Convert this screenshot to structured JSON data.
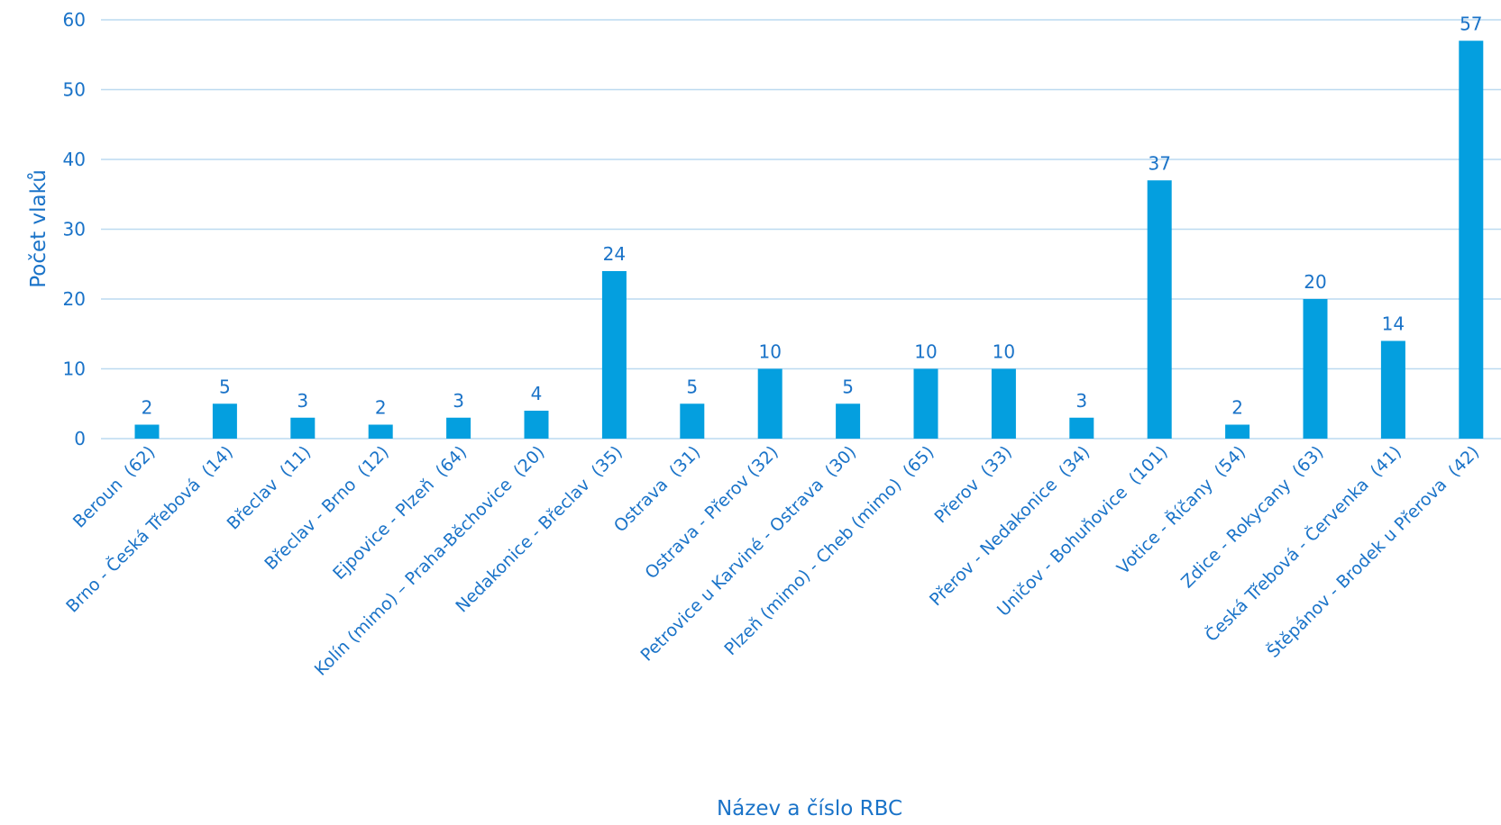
{
  "chart_data": {
    "type": "bar",
    "title": "",
    "xlabel": "Název a číslo RBC",
    "ylabel": "Počet vlaků",
    "ylim": [
      0,
      60
    ],
    "yticks": [
      0,
      10,
      20,
      30,
      40,
      50,
      60
    ],
    "grid": true,
    "legend": "none",
    "bar_color": "#049fdf",
    "text_color": "#1a73c8",
    "categories": [
      "Beroun  (62)",
      "Brno - Česká Třebová  (14)",
      "Břeclav  (11)",
      "Břeclav - Brno  (12)",
      "Ejpovice - Plzeň  (64)",
      "Kolín (mimo) – Praha-Běchovice  (20)",
      "Nedakonice - Břeclav  (35)",
      "Ostrava  (31)",
      "Ostrava - Přerov (32)",
      "Petrovice u Karviné - Ostrava  (30)",
      "Plzeň (mimo) - Cheb (mimo)  (65)",
      "Přerov  (33)",
      "Přerov - Nedakonice  (34)",
      "Uničov - Bohuňovice  (101)",
      "Votice - Říčany  (54)",
      "Zdice - Rokycany  (63)",
      "Česká Třebová - Červenka  (41)",
      "Štěpánov - Brodek u Přerova  (42)"
    ],
    "values": [
      2,
      5,
      3,
      2,
      3,
      4,
      24,
      5,
      10,
      5,
      10,
      10,
      3,
      37,
      2,
      20,
      14,
      57
    ]
  }
}
